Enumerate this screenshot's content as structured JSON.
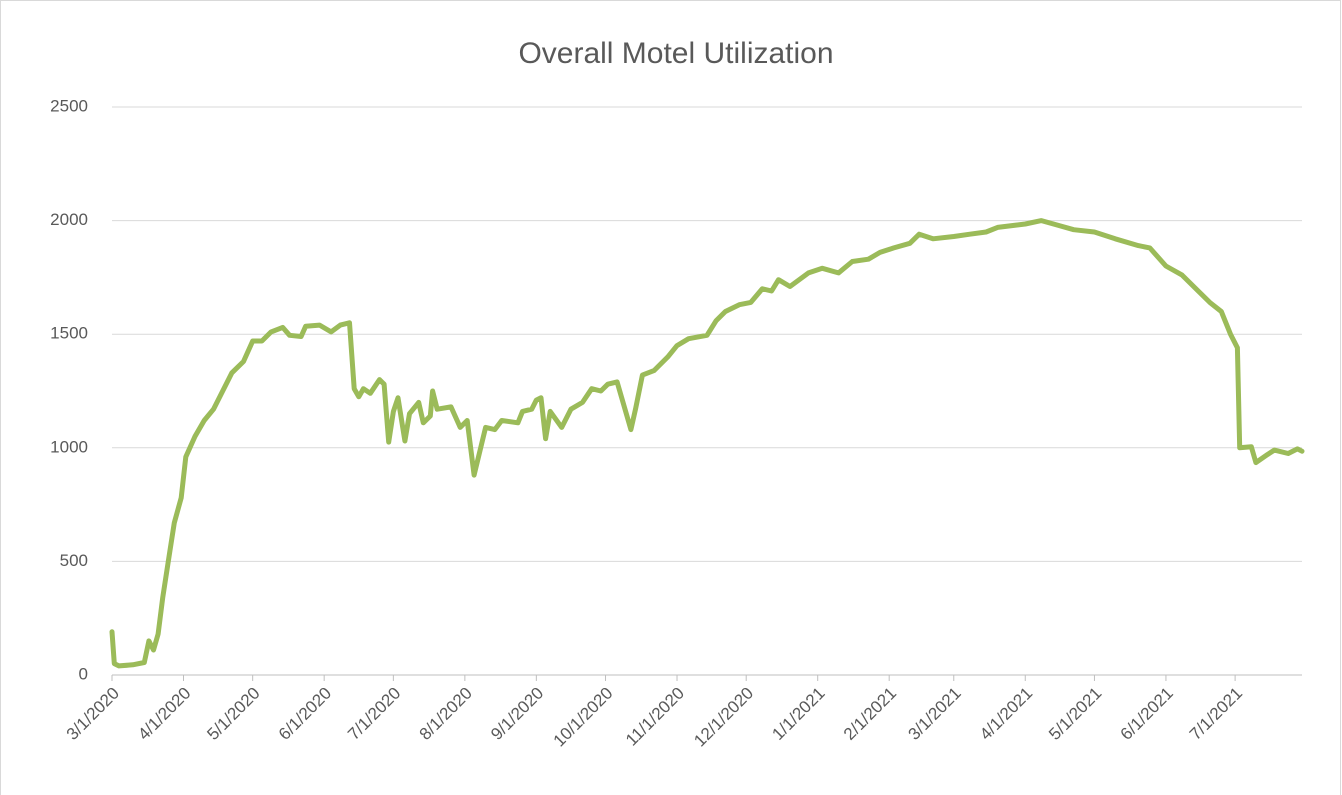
{
  "chart_data": {
    "type": "line",
    "title": "Overall Motel Utilization",
    "x": [
      "3/1/2020",
      "3/2/2020",
      "3/4/2020",
      "3/10/2020",
      "3/15/2020",
      "3/17/2020",
      "3/19/2020",
      "3/21/2020",
      "3/23/2020",
      "3/26/2020",
      "3/28/2020",
      "3/31/2020",
      "4/2/2020",
      "4/6/2020",
      "4/10/2020",
      "4/14/2020",
      "4/18/2020",
      "4/22/2020",
      "4/27/2020",
      "5/1/2020",
      "5/5/2020",
      "5/9/2020",
      "5/14/2020",
      "5/17/2020",
      "5/22/2020",
      "5/24/2020",
      "5/30/2020",
      "6/4/2020",
      "6/8/2020",
      "6/12/2020",
      "6/14/2020",
      "6/16/2020",
      "6/18/2020",
      "6/21/2020",
      "6/25/2020",
      "6/27/2020",
      "6/29/2020",
      "7/1/2020",
      "7/3/2020",
      "7/6/2020",
      "7/8/2020",
      "7/12/2020",
      "7/14/2020",
      "7/17/2020",
      "7/18/2020",
      "7/20/2020",
      "7/26/2020",
      "7/30/2020",
      "8/2/2020",
      "8/5/2020",
      "8/10/2020",
      "8/14/2020",
      "8/17/2020",
      "8/24/2020",
      "8/26/2020",
      "8/30/2020",
      "9/1/2020",
      "9/3/2020",
      "9/5/2020",
      "9/7/2020",
      "9/12/2020",
      "9/16/2020",
      "9/21/2020",
      "9/25/2020",
      "9/29/2020",
      "10/2/2020",
      "10/6/2020",
      "10/8/2020",
      "10/12/2020",
      "10/14/2020",
      "10/17/2020",
      "10/22/2020",
      "10/28/2020",
      "11/1/2020",
      "11/6/2020",
      "11/14/2020",
      "11/18/2020",
      "11/22/2020",
      "11/28/2020",
      "12/3/2020",
      "12/8/2020",
      "12/12/2020",
      "12/15/2020",
      "12/20/2020",
      "12/28/2020",
      "1/3/2021",
      "1/10/2021",
      "1/16/2021",
      "1/23/2021",
      "1/28/2021",
      "2/3/2021",
      "2/10/2021",
      "2/14/2021",
      "2/20/2021",
      "3/1/2021",
      "3/8/2021",
      "3/15/2021",
      "3/20/2021",
      "3/28/2021",
      "4/1/2021",
      "4/8/2021",
      "4/15/2021",
      "4/22/2021",
      "5/1/2021",
      "5/10/2021",
      "5/20/2021",
      "5/25/2021",
      "6/1/2021",
      "6/8/2021",
      "6/15/2021",
      "6/20/2021",
      "6/25/2021",
      "6/29/2021",
      "7/2/2021",
      "7/3/2021",
      "7/8/2021",
      "7/10/2021",
      "7/15/2021",
      "7/18/2021",
      "7/24/2021",
      "7/28/2021",
      "7/30/2021"
    ],
    "series": [
      {
        "name": "Overall Motel Utilization",
        "color": "#9bbb59",
        "values": [
          190,
          50,
          40,
          45,
          55,
          150,
          110,
          180,
          340,
          540,
          670,
          780,
          960,
          1050,
          1120,
          1170,
          1250,
          1330,
          1380,
          1470,
          1470,
          1510,
          1530,
          1495,
          1490,
          1535,
          1540,
          1510,
          1540,
          1550,
          1260,
          1225,
          1260,
          1240,
          1300,
          1280,
          1025,
          1160,
          1220,
          1030,
          1150,
          1200,
          1110,
          1140,
          1250,
          1170,
          1180,
          1090,
          1120,
          880,
          1090,
          1080,
          1120,
          1110,
          1160,
          1170,
          1210,
          1220,
          1040,
          1160,
          1090,
          1170,
          1200,
          1260,
          1250,
          1280,
          1290,
          1220,
          1080,
          1170,
          1320,
          1340,
          1400,
          1450,
          1480,
          1495,
          1560,
          1600,
          1630,
          1640,
          1700,
          1690,
          1740,
          1710,
          1770,
          1790,
          1770,
          1820,
          1830,
          1860,
          1880,
          1900,
          1940,
          1920,
          1930,
          1940,
          1950,
          1970,
          1980,
          1985,
          2000,
          1980,
          1960,
          1950,
          1920,
          1890,
          1880,
          1800,
          1760,
          1690,
          1640,
          1600,
          1500,
          1440,
          1000,
          1005,
          935,
          970,
          990,
          975,
          995,
          985
        ]
      }
    ],
    "xlim": [
      "3/1/2020",
      "7/30/2021"
    ],
    "xticks": [
      "3/1/2020",
      "4/1/2020",
      "5/1/2020",
      "6/1/2020",
      "7/1/2020",
      "8/1/2020",
      "9/1/2020",
      "10/1/2020",
      "11/1/2020",
      "12/1/2020",
      "1/1/2021",
      "2/1/2021",
      "3/1/2021",
      "4/1/2021",
      "5/1/2021",
      "6/1/2021",
      "7/1/2021"
    ],
    "ylim": [
      0,
      2500
    ],
    "yticks": [
      0,
      500,
      1000,
      1500,
      2000,
      2500
    ],
    "grid": true
  }
}
